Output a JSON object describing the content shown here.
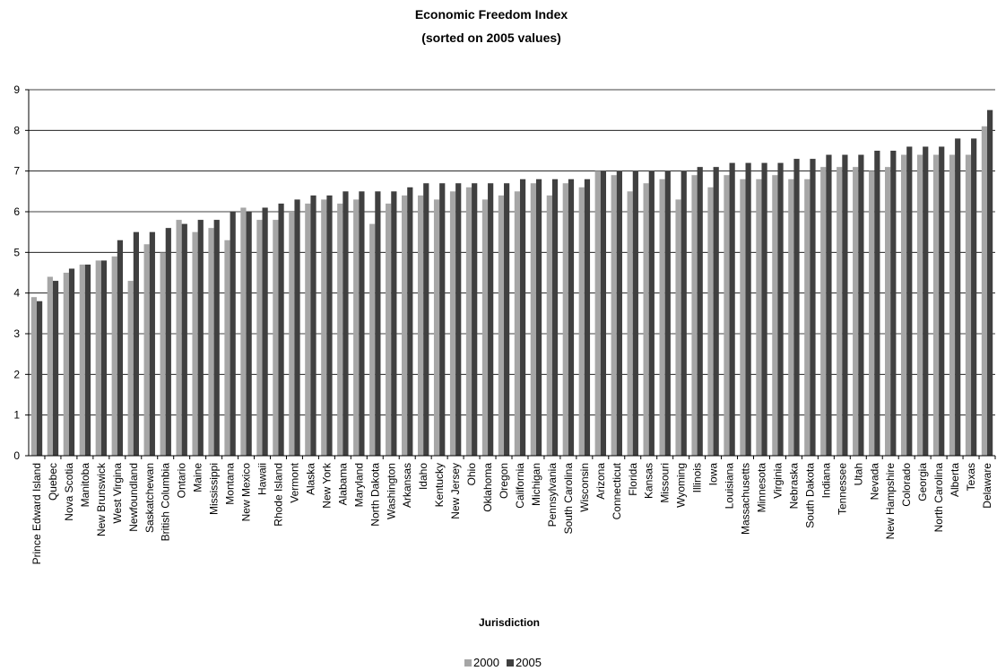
{
  "chart_data": {
    "type": "bar",
    "title": "Economic Freedom Index",
    "subtitle": "(sorted on 2005 values)",
    "xlabel": "Jurisdiction",
    "ylabel": "",
    "ylim": [
      0,
      9
    ],
    "yticks": [
      0,
      1,
      2,
      3,
      4,
      5,
      6,
      7,
      8,
      9
    ],
    "grid": true,
    "legend_position": "bottom",
    "categories": [
      "Prince Edward Island",
      "Quebec",
      "Nova Scotia",
      "Manitoba",
      "New Brunswick",
      "West Virgina",
      "Newfoundland",
      "Saskatchewan",
      "British Columbia",
      "Ontario",
      "Maine",
      "Mississippi",
      "Montana",
      "New Mexico",
      "Hawaii",
      "Rhode Island",
      "Vermont",
      "Alaska",
      "New York",
      "Alabama",
      "Maryland",
      "North Dakota",
      "Washington",
      "Arkansas",
      "Idaho",
      "Kentucky",
      "New Jersey",
      "Ohio",
      "Oklahoma",
      "Oregon",
      "California",
      "Michigan",
      "Pennsylvania",
      "South Carolina",
      "Wisconsin",
      "Arizona",
      "Connecticut",
      "Florida",
      "Kansas",
      "Missouri",
      "Wyoming",
      "Illinois",
      "Iowa",
      "Louisiana",
      "Massachusetts",
      "Minnesota",
      "Virginia",
      "Nebraska",
      "South Dakota",
      "Indiana",
      "Tennessee",
      "Utah",
      "Nevada",
      "New Hampshire",
      "Colorado",
      "Georgia",
      "North Carolina",
      "Alberta",
      "Texas",
      "Delaware"
    ],
    "series": [
      {
        "name": "2000",
        "color": "#a6a6a6",
        "values": [
          3.9,
          4.4,
          4.5,
          4.7,
          4.8,
          4.9,
          4.3,
          5.2,
          5.0,
          5.8,
          5.5,
          5.6,
          5.3,
          6.1,
          5.8,
          5.8,
          6.0,
          6.2,
          6.3,
          6.2,
          6.3,
          5.7,
          6.2,
          6.4,
          6.4,
          6.3,
          6.5,
          6.6,
          6.3,
          6.4,
          6.5,
          6.7,
          6.4,
          6.7,
          6.6,
          7.0,
          6.9,
          6.5,
          6.7,
          6.8,
          6.3,
          6.9,
          6.6,
          6.9,
          6.8,
          6.8,
          6.9,
          6.8,
          6.8,
          7.1,
          7.1,
          7.1,
          7.0,
          7.1,
          7.4,
          7.4,
          7.4,
          7.4,
          7.4,
          8.1
        ]
      },
      {
        "name": "2005",
        "color": "#404040",
        "values": [
          3.8,
          4.3,
          4.6,
          4.7,
          4.8,
          5.3,
          5.5,
          5.5,
          5.6,
          5.7,
          5.8,
          5.8,
          6.0,
          6.0,
          6.1,
          6.2,
          6.3,
          6.4,
          6.4,
          6.5,
          6.5,
          6.5,
          6.5,
          6.6,
          6.7,
          6.7,
          6.7,
          6.7,
          6.7,
          6.7,
          6.8,
          6.8,
          6.8,
          6.8,
          6.8,
          7.0,
          7.0,
          7.0,
          7.0,
          7.0,
          7.0,
          7.1,
          7.1,
          7.2,
          7.2,
          7.2,
          7.2,
          7.3,
          7.3,
          7.4,
          7.4,
          7.4,
          7.5,
          7.5,
          7.6,
          7.6,
          7.6,
          7.8,
          7.8,
          8.5
        ]
      }
    ]
  }
}
